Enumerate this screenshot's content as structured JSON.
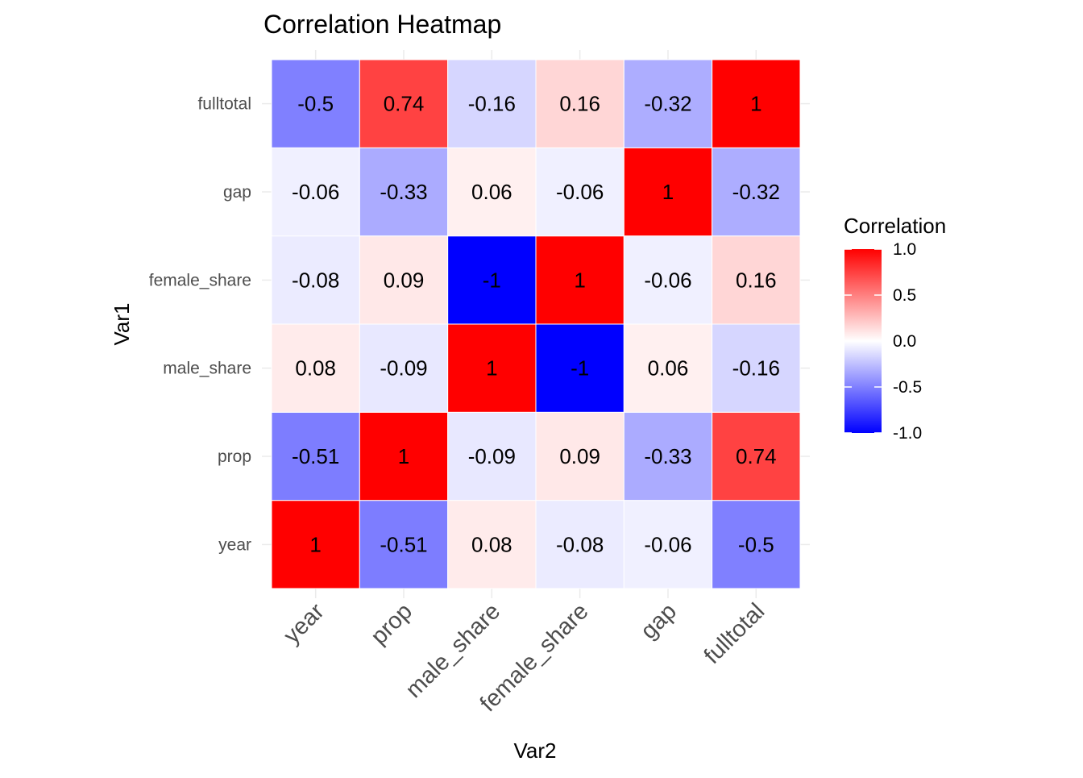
{
  "chart_data": {
    "type": "heatmap",
    "title": "Correlation Heatmap",
    "xlabel": "Var2",
    "ylabel": "Var1",
    "x_categories": [
      "year",
      "prop",
      "male_share",
      "female_share",
      "gap",
      "fulltotal"
    ],
    "y_categories": [
      "year",
      "prop",
      "male_share",
      "female_share",
      "gap",
      "fulltotal"
    ],
    "values": [
      [
        1,
        -0.51,
        0.08,
        -0.08,
        -0.06,
        -0.5
      ],
      [
        -0.51,
        1,
        -0.09,
        0.09,
        -0.33,
        0.74
      ],
      [
        0.08,
        -0.09,
        1,
        -1,
        0.06,
        -0.16
      ],
      [
        -0.08,
        0.09,
        -1,
        1,
        -0.06,
        0.16
      ],
      [
        -0.06,
        -0.33,
        0.06,
        -0.06,
        1,
        -0.32
      ],
      [
        -0.5,
        0.74,
        -0.16,
        0.16,
        -0.32,
        1
      ]
    ],
    "labels": [
      [
        "1",
        "-0.51",
        "0.08",
        "-0.08",
        "-0.06",
        "-0.5"
      ],
      [
        "-0.51",
        "1",
        "-0.09",
        "0.09",
        "-0.33",
        "0.74"
      ],
      [
        "0.08",
        "-0.09",
        "1",
        "-1",
        "0.06",
        "-0.16"
      ],
      [
        "-0.08",
        "0.09",
        "-1",
        "1",
        "-0.06",
        "0.16"
      ],
      [
        "-0.06",
        "-0.33",
        "0.06",
        "-0.06",
        "1",
        "-0.32"
      ],
      [
        "-0.5",
        "0.74",
        "-0.16",
        "0.16",
        "-0.32",
        "1"
      ]
    ],
    "legend": {
      "title": "Correlation",
      "position": "right",
      "range": [
        -1,
        1
      ],
      "ticks": [
        1.0,
        0.5,
        0.0,
        -0.5,
        -1.0
      ],
      "tick_labels": [
        "1.0",
        "0.5",
        "0.0",
        "-0.5",
        "-1.0"
      ]
    },
    "colors": {
      "low": "#0000ff",
      "mid": "#ffffff",
      "high": "#ff0000"
    },
    "grid": true
  }
}
